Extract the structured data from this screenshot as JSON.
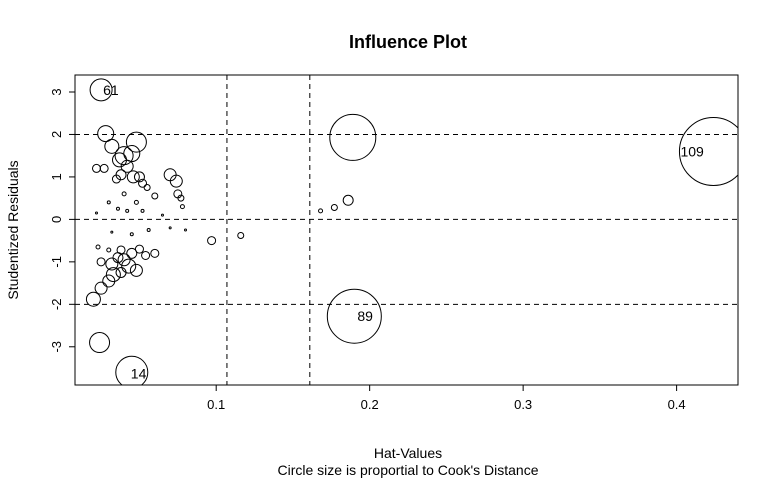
{
  "chart_data": {
    "type": "scatter",
    "title": "Influence Plot",
    "xlabel": "Hat-Values",
    "subtitle": "Circle size is proportial to Cook's Distance",
    "ylabel": "Studentized Residuals",
    "xlim": [
      0.008,
      0.44
    ],
    "ylim": [
      -3.9,
      3.4
    ],
    "x_ticks": [
      0.1,
      0.2,
      0.3,
      0.4
    ],
    "y_ticks": [
      -3,
      -2,
      -1,
      0,
      1,
      2,
      3
    ],
    "reference_lines": {
      "vertical_hat": [
        0.107,
        0.161
      ],
      "horizontal_resid": [
        -2,
        0,
        2
      ]
    },
    "colors": {
      "stroke": "#000000",
      "background": "#ffffff"
    },
    "points": [
      {
        "x": 0.025,
        "y": 3.05,
        "r": 11,
        "label": "61"
      },
      {
        "x": 0.424,
        "y": 1.6,
        "r": 34,
        "label": "109"
      },
      {
        "x": 0.19,
        "y": -2.28,
        "r": 27,
        "label": "89"
      },
      {
        "x": 0.045,
        "y": -3.6,
        "r": 16,
        "label": "14"
      },
      {
        "x": 0.189,
        "y": 1.93,
        "r": 23
      },
      {
        "x": 0.024,
        "y": -2.9,
        "r": 10
      },
      {
        "x": 0.028,
        "y": 2.02,
        "r": 8
      },
      {
        "x": 0.048,
        "y": 1.82,
        "r": 10
      },
      {
        "x": 0.04,
        "y": 1.5,
        "r": 9
      },
      {
        "x": 0.045,
        "y": 1.55,
        "r": 8
      },
      {
        "x": 0.032,
        "y": 1.72,
        "r": 7
      },
      {
        "x": 0.037,
        "y": 1.4,
        "r": 7
      },
      {
        "x": 0.042,
        "y": 1.25,
        "r": 6
      },
      {
        "x": 0.022,
        "y": 1.2,
        "r": 4
      },
      {
        "x": 0.027,
        "y": 1.2,
        "r": 4
      },
      {
        "x": 0.038,
        "y": 1.05,
        "r": 5
      },
      {
        "x": 0.046,
        "y": 1.0,
        "r": 6
      },
      {
        "x": 0.05,
        "y": 1.0,
        "r": 5
      },
      {
        "x": 0.035,
        "y": 0.95,
        "r": 4
      },
      {
        "x": 0.052,
        "y": 0.85,
        "r": 4
      },
      {
        "x": 0.055,
        "y": 0.75,
        "r": 3
      },
      {
        "x": 0.06,
        "y": 0.55,
        "r": 3
      },
      {
        "x": 0.07,
        "y": 1.05,
        "r": 6
      },
      {
        "x": 0.074,
        "y": 0.9,
        "r": 6
      },
      {
        "x": 0.075,
        "y": 0.6,
        "r": 4
      },
      {
        "x": 0.077,
        "y": 0.5,
        "r": 3
      },
      {
        "x": 0.078,
        "y": 0.3,
        "r": 2
      },
      {
        "x": 0.04,
        "y": 0.6,
        "r": 2
      },
      {
        "x": 0.048,
        "y": 0.4,
        "r": 2
      },
      {
        "x": 0.03,
        "y": 0.4,
        "r": 1.5
      },
      {
        "x": 0.036,
        "y": 0.25,
        "r": 1.5
      },
      {
        "x": 0.042,
        "y": 0.2,
        "r": 1.5
      },
      {
        "x": 0.052,
        "y": 0.2,
        "r": 1.5
      },
      {
        "x": 0.022,
        "y": 0.15,
        "r": 1
      },
      {
        "x": 0.065,
        "y": 0.1,
        "r": 1
      },
      {
        "x": 0.032,
        "y": -0.3,
        "r": 1
      },
      {
        "x": 0.045,
        "y": -0.35,
        "r": 1.5
      },
      {
        "x": 0.056,
        "y": -0.25,
        "r": 1.5
      },
      {
        "x": 0.07,
        "y": -0.2,
        "r": 1
      },
      {
        "x": 0.08,
        "y": -0.25,
        "r": 1
      },
      {
        "x": 0.097,
        "y": -0.5,
        "r": 4
      },
      {
        "x": 0.116,
        "y": -0.38,
        "r": 3
      },
      {
        "x": 0.168,
        "y": 0.2,
        "r": 2
      },
      {
        "x": 0.177,
        "y": 0.28,
        "r": 3
      },
      {
        "x": 0.186,
        "y": 0.45,
        "r": 5
      },
      {
        "x": 0.023,
        "y": -0.65,
        "r": 2
      },
      {
        "x": 0.03,
        "y": -0.72,
        "r": 2
      },
      {
        "x": 0.038,
        "y": -0.72,
        "r": 4
      },
      {
        "x": 0.045,
        "y": -0.8,
        "r": 5
      },
      {
        "x": 0.05,
        "y": -0.7,
        "r": 4
      },
      {
        "x": 0.054,
        "y": -0.85,
        "r": 4
      },
      {
        "x": 0.06,
        "y": -0.8,
        "r": 4
      },
      {
        "x": 0.025,
        "y": -1.0,
        "r": 4
      },
      {
        "x": 0.032,
        "y": -1.05,
        "r": 6
      },
      {
        "x": 0.036,
        "y": -0.9,
        "r": 5
      },
      {
        "x": 0.04,
        "y": -0.95,
        "r": 6
      },
      {
        "x": 0.043,
        "y": -1.1,
        "r": 7
      },
      {
        "x": 0.048,
        "y": -1.2,
        "r": 6
      },
      {
        "x": 0.033,
        "y": -1.3,
        "r": 7
      },
      {
        "x": 0.03,
        "y": -1.45,
        "r": 6
      },
      {
        "x": 0.025,
        "y": -1.62,
        "r": 6
      },
      {
        "x": 0.02,
        "y": -1.88,
        "r": 7
      },
      {
        "x": 0.038,
        "y": -1.25,
        "r": 5
      }
    ]
  }
}
